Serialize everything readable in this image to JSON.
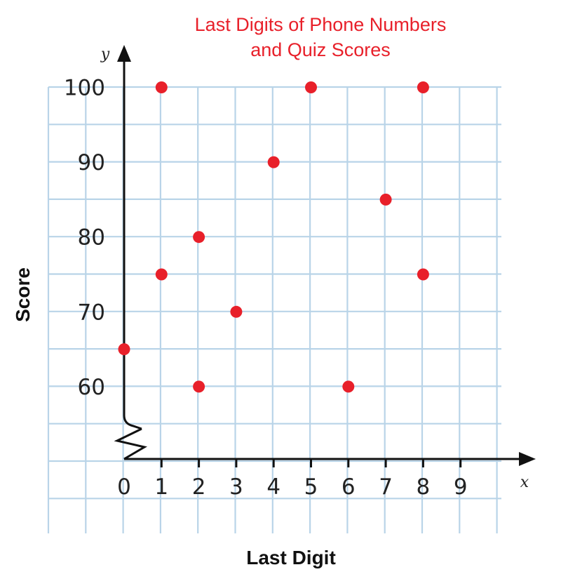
{
  "chart_data": {
    "type": "scatter",
    "title": [
      "Last Digits of Phone Numbers",
      "and Quiz Scores"
    ],
    "xlabel": "Last Digit",
    "ylabel": "Score",
    "x_axis_name": "x",
    "y_axis_name": "y",
    "xlim": [
      0,
      9
    ],
    "ylim": [
      60,
      100
    ],
    "x_ticks": [
      "0",
      "1",
      "2",
      "3",
      "4",
      "5",
      "6",
      "7",
      "8",
      "9"
    ],
    "y_ticks": [
      "60",
      "70",
      "80",
      "90",
      "100"
    ],
    "axis_break": true,
    "grid": true,
    "point_color": "#e8202a",
    "grid_color": "#b9d4e8",
    "title_color": "#e8202a",
    "points": [
      {
        "x": 0,
        "y": 65
      },
      {
        "x": 1,
        "y": 100
      },
      {
        "x": 1,
        "y": 75
      },
      {
        "x": 2,
        "y": 80
      },
      {
        "x": 2,
        "y": 60
      },
      {
        "x": 3,
        "y": 70
      },
      {
        "x": 4,
        "y": 90
      },
      {
        "x": 5,
        "y": 100
      },
      {
        "x": 6,
        "y": 60
      },
      {
        "x": 7,
        "y": 85
      },
      {
        "x": 8,
        "y": 100
      },
      {
        "x": 8,
        "y": 75
      }
    ]
  }
}
